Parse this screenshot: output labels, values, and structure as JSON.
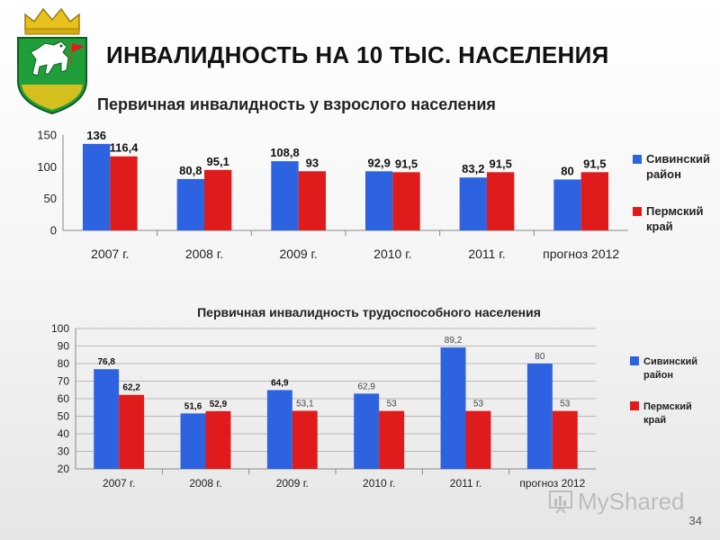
{
  "header": {
    "title": "ИНВАЛИДНОСТЬ НА 10 ТЫС. НАСЕЛЕНИЯ"
  },
  "footer": {
    "page_number": "34",
    "watermark_text": "MyShared"
  },
  "colors": {
    "series_blue": "#2d63e0",
    "series_red": "#e01b1b",
    "emblem_green": "#1f9e3a",
    "emblem_gold": "#e8c21c"
  },
  "icons": [
    "coat-of-arms-icon",
    "myshared-logo-icon"
  ],
  "chart_data": [
    {
      "type": "bar",
      "title": "Первичная инвалидность у взрослого населения",
      "categories": [
        "2007 г.",
        "2008 г.",
        "2009 г.",
        "2010 г.",
        "2011 г.",
        "прогноз 2012"
      ],
      "series": [
        {
          "name": "Сивинский район",
          "color": "#2d63e0",
          "values": [
            136,
            80.8,
            108.8,
            92.9,
            83.2,
            80
          ],
          "labels": [
            "136",
            "80,8",
            "108,8",
            "92,9",
            "83,2",
            "80"
          ]
        },
        {
          "name": "Пермский край",
          "color": "#e01b1b",
          "values": [
            116.4,
            95.1,
            93,
            91.5,
            91.5,
            91.5
          ],
          "labels": [
            "116,4",
            "95,1",
            "93",
            "91,5",
            "91,5",
            "91,5"
          ]
        }
      ],
      "ylim": [
        0,
        150
      ],
      "yticks": [
        "0",
        "50",
        "100",
        "150"
      ],
      "grid": false,
      "legend": "right"
    },
    {
      "type": "bar",
      "title": "Первичная инвалидность трудоспособного населения",
      "categories": [
        "2007 г.",
        "2008 г.",
        "2009 г.",
        "2010 г.",
        "2011 г.",
        "прогноз 2012"
      ],
      "series": [
        {
          "name": "Сивинский район",
          "color": "#2d63e0",
          "values": [
            76.8,
            51.6,
            64.9,
            62.9,
            89.2,
            80
          ],
          "labels": [
            "76,8",
            "51,6",
            "64,9",
            "62,9",
            "89,2",
            "80"
          ]
        },
        {
          "name": "Пермский край",
          "color": "#e01b1b",
          "values": [
            62.2,
            52.9,
            53.1,
            53,
            53,
            53
          ],
          "labels": [
            "62,2",
            "52,9",
            "53,1",
            "53",
            "53",
            "53"
          ]
        }
      ],
      "ylim": [
        20,
        100
      ],
      "yticks": [
        "20",
        "30",
        "40",
        "50",
        "60",
        "70",
        "80",
        "90",
        "100"
      ],
      "grid": true,
      "legend": "right"
    }
  ]
}
